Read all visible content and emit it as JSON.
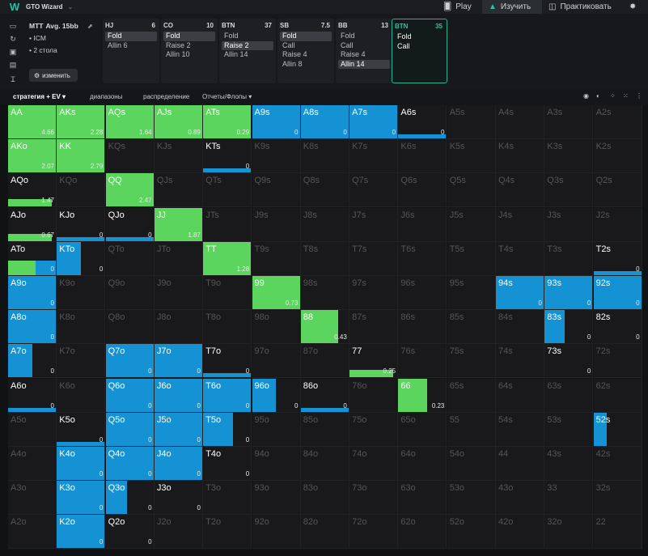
{
  "app": {
    "title": "GTO Wizard",
    "logo": "W"
  },
  "topnav": {
    "play": "Play",
    "learn": "Изучить",
    "practice": "Практиковать"
  },
  "game": {
    "format": "MTT",
    "avg": "Avg. 15bb",
    "icm": "• ICM",
    "tables": "• 2 стола",
    "edit": "изменить"
  },
  "positions": [
    {
      "name": "HJ",
      "stack": "6",
      "actions": [
        "Fold",
        "Allin 6"
      ],
      "selected": 0
    },
    {
      "name": "CO",
      "stack": "10",
      "actions": [
        "Fold",
        "Raise 2",
        "Allin 10"
      ],
      "selected": 0
    },
    {
      "name": "BTN",
      "stack": "37",
      "actions": [
        "Fold",
        "Raise 2",
        "Allin 14"
      ],
      "selected": 1
    },
    {
      "name": "SB",
      "stack": "7.5",
      "actions": [
        "Fold",
        "Call",
        "Raise 4",
        "Allin 8"
      ],
      "selected": 0
    },
    {
      "name": "BB",
      "stack": "13",
      "actions": [
        "Fold",
        "Call",
        "Raise 4",
        "Allin 14"
      ],
      "selected": 3
    },
    {
      "name": "BTN",
      "stack": "35",
      "actions": [
        "Fold",
        "Call"
      ],
      "selected": -1
    }
  ],
  "controls": {
    "strategy": "стратегия + EV",
    "ranges": "диапазоны",
    "distribution": "распределение",
    "reports": "Отчеты/Флопы"
  },
  "colors": {
    "raise": "#5bd55d",
    "call": "#1592d4",
    "fold": "#19191b",
    "accent": "#27c4a3"
  },
  "grid": [
    [
      {
        "l": "AA",
        "c": "green",
        "f": 1,
        "ev": "4.66"
      },
      {
        "l": "AKs",
        "c": "green",
        "f": 1,
        "ev": "2.28"
      },
      {
        "l": "AQs",
        "c": "green",
        "f": 1,
        "ev": "1.64"
      },
      {
        "l": "AJs",
        "c": "green",
        "f": 1,
        "ev": "0.89"
      },
      {
        "l": "ATs",
        "c": "green",
        "f": 1,
        "ev": "0.29"
      },
      {
        "l": "A9s",
        "c": "blue",
        "f": 1,
        "ev": "0"
      },
      {
        "l": "A8s",
        "c": "blue",
        "f": 1,
        "ev": "0"
      },
      {
        "l": "A7s",
        "c": "blue",
        "f": 1,
        "ev": "0"
      },
      {
        "l": "A6s",
        "c": "strip",
        "ev": "0"
      },
      {
        "l": "A5s"
      },
      {
        "l": "A4s"
      },
      {
        "l": "A3s"
      },
      {
        "l": "A2s"
      }
    ],
    [
      {
        "l": "AKo",
        "c": "green",
        "f": 1,
        "ev": "2.07"
      },
      {
        "l": "KK",
        "c": "green",
        "f": 1,
        "ev": "2.79"
      },
      {
        "l": "KQs"
      },
      {
        "l": "KJs"
      },
      {
        "l": "KTs",
        "c": "strip",
        "ev": "0"
      },
      {
        "l": "K9s"
      },
      {
        "l": "K8s"
      },
      {
        "l": "K7s"
      },
      {
        "l": "K6s"
      },
      {
        "l": "K5s"
      },
      {
        "l": "K4s"
      },
      {
        "l": "K3s"
      },
      {
        "l": "K2s"
      }
    ],
    [
      {
        "l": "AQo",
        "c": "strip-green",
        "ev": "1.47"
      },
      {
        "l": "KQo"
      },
      {
        "l": "QQ",
        "c": "green",
        "f": 1,
        "ev": "2.47"
      },
      {
        "l": "QJs"
      },
      {
        "l": "QTs"
      },
      {
        "l": "Q9s"
      },
      {
        "l": "Q8s"
      },
      {
        "l": "Q7s"
      },
      {
        "l": "Q6s"
      },
      {
        "l": "Q5s"
      },
      {
        "l": "Q4s"
      },
      {
        "l": "Q3s"
      },
      {
        "l": "Q2s"
      }
    ],
    [
      {
        "l": "AJo",
        "c": "strip-green",
        "ev": "0.67"
      },
      {
        "l": "KJo",
        "c": "strip",
        "ev": "0"
      },
      {
        "l": "QJo",
        "c": "strip",
        "ev": "0"
      },
      {
        "l": "JJ",
        "c": "green",
        "f": 1,
        "ev": "1.87"
      },
      {
        "l": "JTs"
      },
      {
        "l": "J9s"
      },
      {
        "l": "J8s"
      },
      {
        "l": "J7s"
      },
      {
        "l": "J6s"
      },
      {
        "l": "J5s"
      },
      {
        "l": "J4s"
      },
      {
        "l": "J3s"
      },
      {
        "l": "J2s"
      }
    ],
    [
      {
        "l": "ATo",
        "c": "mixed",
        "ev": "0"
      },
      {
        "l": "KTo",
        "c": "blue",
        "f": 0.5,
        "ev": "0"
      },
      {
        "l": "QTo"
      },
      {
        "l": "JTo"
      },
      {
        "l": "TT",
        "c": "green",
        "f": 1,
        "ev": "1.28"
      },
      {
        "l": "T9s"
      },
      {
        "l": "T8s"
      },
      {
        "l": "T7s"
      },
      {
        "l": "T6s"
      },
      {
        "l": "T5s"
      },
      {
        "l": "T4s"
      },
      {
        "l": "T3s"
      },
      {
        "l": "T2s",
        "c": "strip",
        "ev": "0"
      }
    ],
    [
      {
        "l": "A9o",
        "c": "blue",
        "f": 1,
        "ev": "0"
      },
      {
        "l": "K9o"
      },
      {
        "l": "Q9o"
      },
      {
        "l": "J9o"
      },
      {
        "l": "T9o"
      },
      {
        "l": "99",
        "c": "green",
        "f": 1,
        "ev": "0.73"
      },
      {
        "l": "98s"
      },
      {
        "l": "97s"
      },
      {
        "l": "96s"
      },
      {
        "l": "95s"
      },
      {
        "l": "94s",
        "c": "blue",
        "f": 1,
        "ev": "0"
      },
      {
        "l": "93s",
        "c": "blue",
        "f": 1,
        "ev": "0"
      },
      {
        "l": "92s",
        "c": "blue",
        "f": 1,
        "ev": "0"
      }
    ],
    [
      {
        "l": "A8o",
        "c": "blue",
        "f": 1,
        "ev": "0"
      },
      {
        "l": "K8o"
      },
      {
        "l": "Q8o"
      },
      {
        "l": "J8o"
      },
      {
        "l": "T8o"
      },
      {
        "l": "98o"
      },
      {
        "l": "88",
        "c": "green",
        "f": 0.78,
        "ev": "0.43"
      },
      {
        "l": "87s"
      },
      {
        "l": "86s"
      },
      {
        "l": "85s"
      },
      {
        "l": "84s"
      },
      {
        "l": "83s",
        "c": "blue",
        "f": 0.42,
        "ev": "0"
      },
      {
        "l": "82s",
        "c": "none",
        "ev": "0"
      }
    ],
    [
      {
        "l": "A7o",
        "c": "blue",
        "f": 0.5,
        "ev": "0"
      },
      {
        "l": "K7o"
      },
      {
        "l": "Q7o",
        "c": "blue",
        "f": 1,
        "ev": "0"
      },
      {
        "l": "J7o",
        "c": "blue",
        "f": 1,
        "ev": "0"
      },
      {
        "l": "T7o",
        "c": "strip",
        "ev": "0"
      },
      {
        "l": "97o"
      },
      {
        "l": "87o"
      },
      {
        "l": "77",
        "c": "strip-green",
        "ev": "0.25"
      },
      {
        "l": "76s"
      },
      {
        "l": "75s"
      },
      {
        "l": "74s"
      },
      {
        "l": "73s",
        "c": "none",
        "ev": "0"
      },
      {
        "l": "72s"
      }
    ],
    [
      {
        "l": "A6o",
        "c": "strip",
        "ev": "0"
      },
      {
        "l": "K6o"
      },
      {
        "l": "Q6o",
        "c": "blue",
        "f": 1,
        "ev": "0"
      },
      {
        "l": "J6o",
        "c": "blue",
        "f": 1,
        "ev": "0"
      },
      {
        "l": "T6o",
        "c": "blue",
        "f": 1,
        "ev": "0"
      },
      {
        "l": "96o",
        "c": "blue",
        "f": 0.5,
        "ev": "0"
      },
      {
        "l": "86o",
        "c": "strip",
        "ev": "0"
      },
      {
        "l": "76o"
      },
      {
        "l": "66",
        "c": "green",
        "f": 0.6,
        "ev": "0.23"
      },
      {
        "l": "65s"
      },
      {
        "l": "64s"
      },
      {
        "l": "63s"
      },
      {
        "l": "62s"
      }
    ],
    [
      {
        "l": "A5o"
      },
      {
        "l": "K5o",
        "c": "strip",
        "ev": "0"
      },
      {
        "l": "Q5o",
        "c": "blue",
        "f": 1,
        "ev": "0"
      },
      {
        "l": "J5o",
        "c": "blue",
        "f": 1,
        "ev": "0"
      },
      {
        "l": "T5o",
        "c": "blue",
        "f": 0.62,
        "ev": "0"
      },
      {
        "l": "95o"
      },
      {
        "l": "85o"
      },
      {
        "l": "75o"
      },
      {
        "l": "65o"
      },
      {
        "l": "55"
      },
      {
        "l": "54s"
      },
      {
        "l": "53s"
      },
      {
        "l": "52s",
        "c": "blue",
        "f": 0.28,
        "ev": ""
      }
    ],
    [
      {
        "l": "A4o"
      },
      {
        "l": "K4o",
        "c": "blue",
        "f": 1,
        "ev": "0"
      },
      {
        "l": "Q4o",
        "c": "blue",
        "f": 1,
        "ev": "0"
      },
      {
        "l": "J4o",
        "c": "blue",
        "f": 1,
        "ev": "0"
      },
      {
        "l": "T4o",
        "c": "none",
        "ev": "0"
      },
      {
        "l": "94o"
      },
      {
        "l": "84o"
      },
      {
        "l": "74o"
      },
      {
        "l": "64o"
      },
      {
        "l": "54o"
      },
      {
        "l": "44"
      },
      {
        "l": "43s"
      },
      {
        "l": "42s"
      }
    ],
    [
      {
        "l": "A3o"
      },
      {
        "l": "K3o",
        "c": "blue",
        "f": 1,
        "ev": "0"
      },
      {
        "l": "Q3o",
        "c": "blue",
        "f": 0.45,
        "ev": "0"
      },
      {
        "l": "J3o",
        "c": "none",
        "ev": "0"
      },
      {
        "l": "T3o"
      },
      {
        "l": "93o"
      },
      {
        "l": "83o"
      },
      {
        "l": "73o"
      },
      {
        "l": "63o"
      },
      {
        "l": "53o"
      },
      {
        "l": "43o"
      },
      {
        "l": "33"
      },
      {
        "l": "32s"
      }
    ],
    [
      {
        "l": "A2o"
      },
      {
        "l": "K2o",
        "c": "blue",
        "f": 1,
        "ev": "0"
      },
      {
        "l": "Q2o",
        "c": "none",
        "ev": "0"
      },
      {
        "l": "J2o"
      },
      {
        "l": "T2o"
      },
      {
        "l": "92o"
      },
      {
        "l": "82o"
      },
      {
        "l": "72o"
      },
      {
        "l": "62o"
      },
      {
        "l": "52o"
      },
      {
        "l": "42o"
      },
      {
        "l": "32o"
      },
      {
        "l": "22"
      }
    ]
  ]
}
